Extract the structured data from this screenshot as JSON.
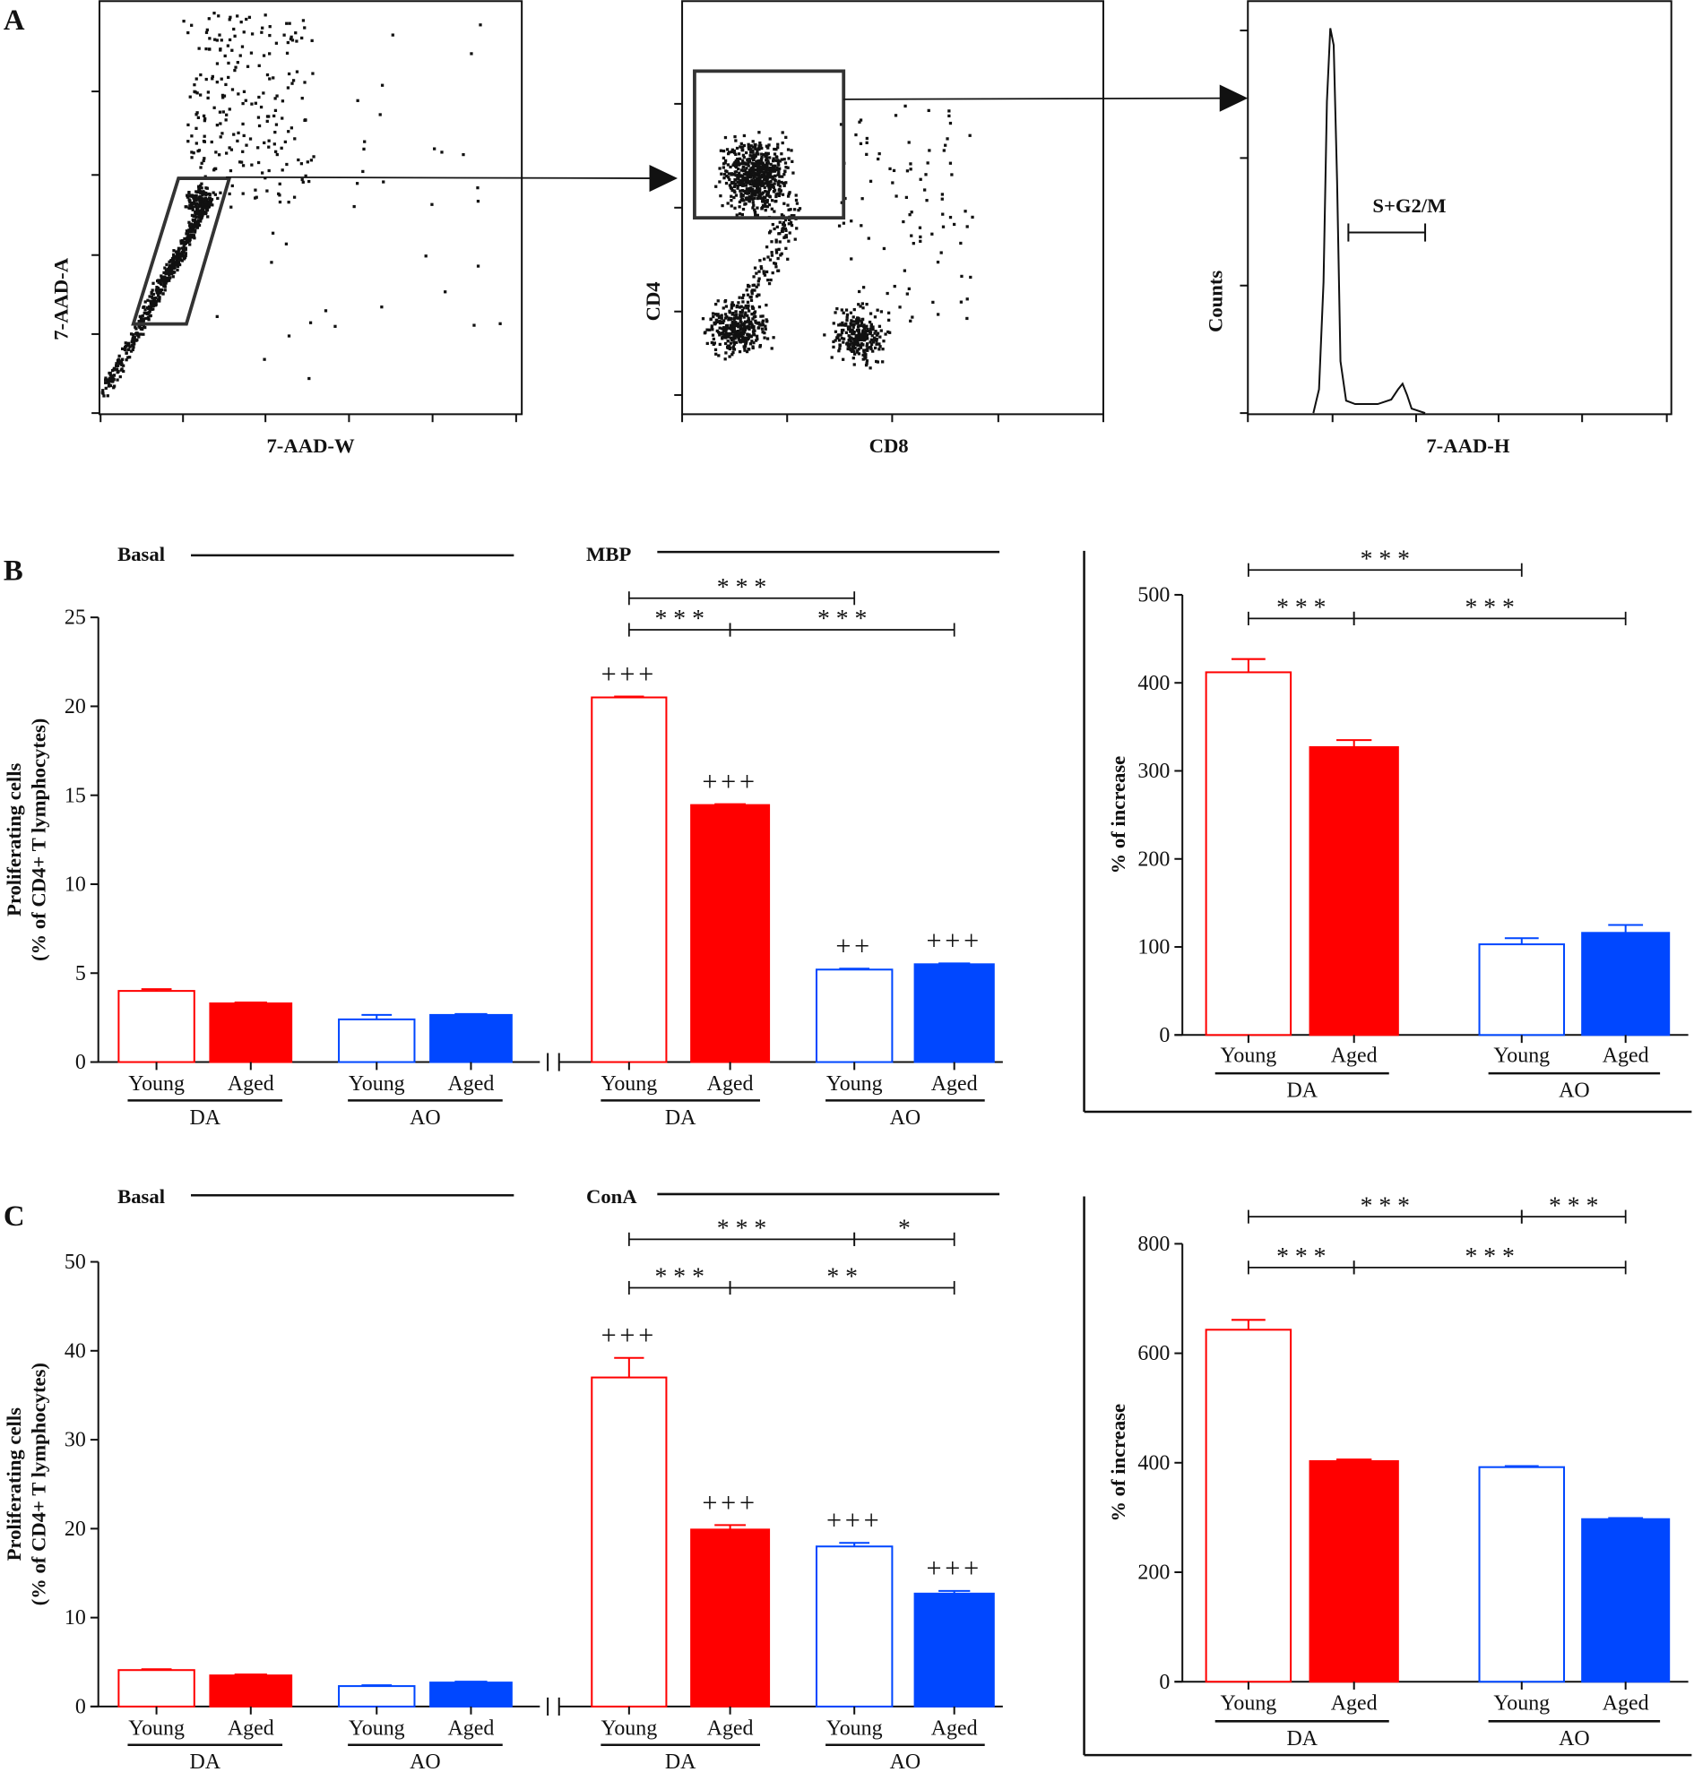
{
  "panel_labels": [
    "A",
    "B",
    "C"
  ],
  "colors": {
    "DA": "#ff0000",
    "AO": "#0047ff",
    "axis": "#111111"
  },
  "chart_data": [
    {
      "id": "A1",
      "type": "scatter",
      "xlabel": "7-AAD-W",
      "ylabel": "7-AAD-A",
      "gate": "parallelogram around singlets",
      "grid": false
    },
    {
      "id": "A2",
      "type": "scatter",
      "xlabel": "CD8",
      "ylabel": "CD4",
      "gate": "rectangle around CD4+ population",
      "grid": false
    },
    {
      "id": "A3",
      "type": "line",
      "xlabel": "7-AAD-H",
      "ylabel": "Counts",
      "annotation": "S+G2/M",
      "grid": false
    },
    {
      "id": "B-left",
      "type": "bar",
      "ylabel": [
        "Proliferating cells",
        "(% of CD4+ T lymphocytes)"
      ],
      "ylim": [
        0,
        25
      ],
      "yticks": [
        "0",
        "5",
        "10",
        "15",
        "20",
        "25"
      ],
      "ytick_values": [
        0,
        5,
        10,
        15,
        20,
        25
      ],
      "sections": [
        {
          "label": "Basal",
          "groups": [
            {
              "label": "DA",
              "bars": [
                {
                  "label": "Young",
                  "value": 4.0,
                  "error": 0.1,
                  "fill": "open",
                  "color": "#ff0000",
                  "mark": ""
                },
                {
                  "label": "Aged",
                  "value": 3.3,
                  "error": 0.05,
                  "fill": "filled",
                  "color": "#ff0000",
                  "mark": ""
                }
              ]
            },
            {
              "label": "AO",
              "bars": [
                {
                  "label": "Young",
                  "value": 2.4,
                  "error": 0.25,
                  "fill": "open",
                  "color": "#0047ff",
                  "mark": ""
                },
                {
                  "label": "Aged",
                  "value": 2.65,
                  "error": 0.05,
                  "fill": "filled",
                  "color": "#0047ff",
                  "mark": ""
                }
              ]
            }
          ]
        },
        {
          "label": "MBP",
          "groups": [
            {
              "label": "DA",
              "bars": [
                {
                  "label": "Young",
                  "value": 20.5,
                  "error": 0.05,
                  "fill": "open",
                  "color": "#ff0000",
                  "mark": "+++"
                },
                {
                  "label": "Aged",
                  "value": 14.45,
                  "error": 0.05,
                  "fill": "filled",
                  "color": "#ff0000",
                  "mark": "+++"
                }
              ]
            },
            {
              "label": "AO",
              "bars": [
                {
                  "label": "Young",
                  "value": 5.2,
                  "error": 0.05,
                  "fill": "open",
                  "color": "#0047ff",
                  "mark": "++"
                },
                {
                  "label": "Aged",
                  "value": 5.5,
                  "error": 0.05,
                  "fill": "filled",
                  "color": "#0047ff",
                  "mark": "+++"
                }
              ]
            }
          ]
        }
      ],
      "brackets": [
        {
          "level": 0,
          "from": 4,
          "to": 6,
          "text": "* * *"
        },
        {
          "level": 1,
          "from": 4,
          "to": 5,
          "text": "* * *"
        },
        {
          "level": 1,
          "from": 5,
          "to": 7,
          "text": "* * *"
        }
      ]
    },
    {
      "id": "B-right",
      "type": "bar",
      "ylabel": [
        "% of increase"
      ],
      "ylim": [
        0,
        500
      ],
      "yticks": [
        "0",
        "100",
        "200",
        "300",
        "400",
        "500"
      ],
      "ytick_values": [
        0,
        100,
        200,
        300,
        400,
        500
      ],
      "sections": [
        {
          "label": "",
          "groups": [
            {
              "label": "DA",
              "bars": [
                {
                  "label": "Young",
                  "value": 412,
                  "error": 15,
                  "fill": "open",
                  "color": "#ff0000",
                  "mark": ""
                },
                {
                  "label": "Aged",
                  "value": 327,
                  "error": 8,
                  "fill": "filled",
                  "color": "#ff0000",
                  "mark": ""
                }
              ]
            },
            {
              "label": "AO",
              "bars": [
                {
                  "label": "Young",
                  "value": 103,
                  "error": 7,
                  "fill": "open",
                  "color": "#0047ff",
                  "mark": ""
                },
                {
                  "label": "Aged",
                  "value": 116,
                  "error": 9,
                  "fill": "filled",
                  "color": "#0047ff",
                  "mark": ""
                }
              ]
            }
          ]
        }
      ],
      "brackets": [
        {
          "level": 0,
          "from": 0,
          "to": 2,
          "text": "* * *"
        },
        {
          "level": 1,
          "from": 0,
          "to": 1,
          "text": "* * *"
        },
        {
          "level": 1,
          "from": 1,
          "to": 3,
          "text": "* * *"
        }
      ]
    },
    {
      "id": "C-left",
      "type": "bar",
      "ylabel": [
        "Proliferating cells",
        "(% of CD4+ T lymphocytes)"
      ],
      "ylim": [
        0,
        50
      ],
      "yticks": [
        "0",
        "10",
        "20",
        "30",
        "40",
        "50"
      ],
      "ytick_values": [
        0,
        10,
        20,
        30,
        40,
        50
      ],
      "sections": [
        {
          "label": "Basal",
          "groups": [
            {
              "label": "DA",
              "bars": [
                {
                  "label": "Young",
                  "value": 4.1,
                  "error": 0.1,
                  "fill": "open",
                  "color": "#ff0000",
                  "mark": ""
                },
                {
                  "label": "Aged",
                  "value": 3.5,
                  "error": 0.1,
                  "fill": "filled",
                  "color": "#ff0000",
                  "mark": ""
                }
              ]
            },
            {
              "label": "AO",
              "bars": [
                {
                  "label": "Young",
                  "value": 2.3,
                  "error": 0.1,
                  "fill": "open",
                  "color": "#0047ff",
                  "mark": ""
                },
                {
                  "label": "Aged",
                  "value": 2.7,
                  "error": 0.1,
                  "fill": "filled",
                  "color": "#0047ff",
                  "mark": ""
                }
              ]
            }
          ]
        },
        {
          "label": "ConA",
          "groups": [
            {
              "label": "DA",
              "bars": [
                {
                  "label": "Young",
                  "value": 37.0,
                  "error": 2.2,
                  "fill": "open",
                  "color": "#ff0000",
                  "mark": "+++"
                },
                {
                  "label": "Aged",
                  "value": 19.9,
                  "error": 0.5,
                  "fill": "filled",
                  "color": "#ff0000",
                  "mark": "+++"
                }
              ]
            },
            {
              "label": "AO",
              "bars": [
                {
                  "label": "Young",
                  "value": 18.0,
                  "error": 0.4,
                  "fill": "open",
                  "color": "#0047ff",
                  "mark": "+++"
                },
                {
                  "label": "Aged",
                  "value": 12.7,
                  "error": 0.3,
                  "fill": "filled",
                  "color": "#0047ff",
                  "mark": "+++"
                }
              ]
            }
          ]
        }
      ],
      "brackets": [
        {
          "level": 0,
          "from": 4,
          "to": 6,
          "text": "* * *"
        },
        {
          "level": 0,
          "from": 6,
          "to": 7,
          "text": "*"
        },
        {
          "level": 1,
          "from": 4,
          "to": 5,
          "text": "* * *"
        },
        {
          "level": 1,
          "from": 5,
          "to": 7,
          "text": "* *"
        }
      ]
    },
    {
      "id": "C-right",
      "type": "bar",
      "ylabel": [
        "% of increase"
      ],
      "ylim": [
        0,
        800
      ],
      "yticks": [
        "0",
        "200",
        "400",
        "600",
        "800"
      ],
      "ytick_values": [
        0,
        200,
        400,
        600,
        800
      ],
      "sections": [
        {
          "label": "",
          "groups": [
            {
              "label": "DA",
              "bars": [
                {
                  "label": "Young",
                  "value": 643,
                  "error": 18,
                  "fill": "open",
                  "color": "#ff0000",
                  "mark": ""
                },
                {
                  "label": "Aged",
                  "value": 403,
                  "error": 3,
                  "fill": "filled",
                  "color": "#ff0000",
                  "mark": ""
                }
              ]
            },
            {
              "label": "AO",
              "bars": [
                {
                  "label": "Young",
                  "value": 392,
                  "error": 2,
                  "fill": "open",
                  "color": "#0047ff",
                  "mark": ""
                },
                {
                  "label": "Aged",
                  "value": 297,
                  "error": 2,
                  "fill": "filled",
                  "color": "#0047ff",
                  "mark": ""
                }
              ]
            }
          ]
        }
      ],
      "brackets": [
        {
          "level": 0,
          "from": 0,
          "to": 2,
          "text": "* * *"
        },
        {
          "level": 0,
          "from": 2,
          "to": 3,
          "text": "* * *"
        },
        {
          "level": 1,
          "from": 0,
          "to": 1,
          "text": "* * *"
        },
        {
          "level": 1,
          "from": 1,
          "to": 3,
          "text": "* * *"
        }
      ]
    }
  ]
}
